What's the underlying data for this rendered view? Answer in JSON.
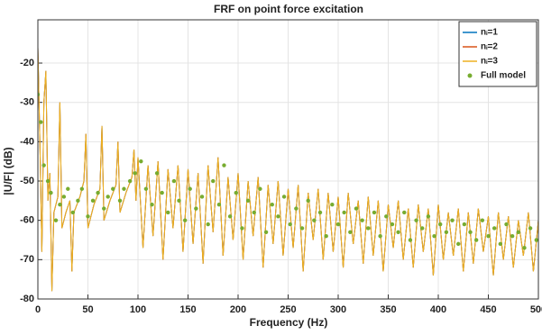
{
  "chart_data": {
    "type": "line",
    "title": "FRF on point force excitation",
    "xlabel": "Frequency (Hz)",
    "ylabel": "|U/F| (dB)",
    "xlim": [
      0,
      500
    ],
    "ylim": [
      -80,
      -9
    ],
    "xticks": [
      0,
      50,
      100,
      150,
      200,
      250,
      300,
      350,
      400,
      450,
      500
    ],
    "yticks": [
      -80,
      -70,
      -60,
      -50,
      -40,
      -30,
      -20
    ],
    "grid": true,
    "legend": "upper right",
    "x": [
      0,
      2,
      4,
      6,
      8,
      10,
      12,
      14,
      16,
      18,
      20,
      22,
      24,
      28,
      32,
      34,
      36,
      42,
      46,
      48,
      50,
      56,
      62,
      64,
      66,
      72,
      78,
      80,
      82,
      88,
      94,
      96,
      98,
      100,
      105,
      110,
      115,
      120,
      125,
      130,
      135,
      140,
      145,
      150,
      155,
      160,
      165,
      170,
      175,
      180,
      185,
      190,
      195,
      200,
      205,
      210,
      215,
      220,
      225,
      230,
      235,
      240,
      245,
      250,
      255,
      260,
      265,
      270,
      275,
      280,
      285,
      290,
      295,
      300,
      305,
      310,
      315,
      320,
      325,
      330,
      335,
      340,
      345,
      350,
      355,
      360,
      365,
      370,
      375,
      380,
      385,
      390,
      395,
      400,
      405,
      410,
      415,
      420,
      425,
      430,
      435,
      440,
      445,
      450,
      455,
      460,
      465,
      470,
      475,
      480,
      485,
      490,
      495,
      500
    ],
    "series": [
      {
        "name": "nᵢ=1",
        "color": "#0072BD",
        "style": "line",
        "values": [
          -16,
          -40,
          -68,
          -30,
          -22,
          -55,
          -48,
          -78,
          -58,
          -56,
          -54,
          -30,
          -62,
          -58,
          -55,
          -73,
          -58,
          -54,
          -50,
          -38,
          -62,
          -56,
          -52,
          -36,
          -60,
          -55,
          -51,
          -40,
          -58,
          -53,
          -49,
          -42,
          -55,
          -44,
          -67,
          -46,
          -64,
          -45,
          -70,
          -47,
          -62,
          -46,
          -68,
          -47,
          -66,
          -48,
          -71,
          -46,
          -63,
          -44,
          -69,
          -49,
          -65,
          -48,
          -70,
          -50,
          -64,
          -49,
          -72,
          -51,
          -66,
          -50,
          -69,
          -52,
          -67,
          -51,
          -73,
          -53,
          -65,
          -52,
          -70,
          -53,
          -68,
          -54,
          -72,
          -53,
          -66,
          -55,
          -71,
          -54,
          -69,
          -55,
          -73,
          -56,
          -67,
          -55,
          -70,
          -57,
          -72,
          -56,
          -68,
          -57,
          -74,
          -56,
          -70,
          -58,
          -69,
          -57,
          -73,
          -58,
          -71,
          -57,
          -68,
          -59,
          -74,
          -58,
          -70,
          -59,
          -72,
          -60,
          -69,
          -58,
          -73,
          -60
        ]
      },
      {
        "name": "nᵢ=2",
        "color": "#D95319",
        "style": "line",
        "values": [
          -16,
          -40,
          -68,
          -30,
          -22,
          -55,
          -48,
          -78,
          -58,
          -56,
          -54,
          -30,
          -62,
          -58,
          -55,
          -73,
          -58,
          -54,
          -50,
          -38,
          -62,
          -56,
          -52,
          -36,
          -60,
          -55,
          -51,
          -40,
          -58,
          -53,
          -49,
          -42,
          -55,
          -44,
          -67,
          -46,
          -64,
          -45,
          -70,
          -47,
          -62,
          -46,
          -68,
          -47,
          -66,
          -48,
          -71,
          -46,
          -63,
          -44,
          -69,
          -49,
          -65,
          -48,
          -70,
          -50,
          -64,
          -49,
          -72,
          -51,
          -66,
          -50,
          -69,
          -52,
          -67,
          -51,
          -73,
          -53,
          -65,
          -52,
          -70,
          -53,
          -68,
          -54,
          -72,
          -53,
          -66,
          -55,
          -71,
          -54,
          -69,
          -55,
          -73,
          -56,
          -67,
          -55,
          -70,
          -57,
          -72,
          -56,
          -68,
          -57,
          -74,
          -56,
          -70,
          -58,
          -69,
          -57,
          -73,
          -58,
          -71,
          -57,
          -68,
          -59,
          -74,
          -58,
          -70,
          -59,
          -72,
          -60,
          -69,
          -58,
          -73,
          -60
        ]
      },
      {
        "name": "nᵢ=3",
        "color": "#EDB120",
        "style": "line",
        "values": [
          -16,
          -40,
          -68,
          -30,
          -22,
          -55,
          -48,
          -78,
          -58,
          -56,
          -54,
          -30,
          -62,
          -58,
          -55,
          -73,
          -58,
          -54,
          -50,
          -38,
          -62,
          -56,
          -52,
          -36,
          -60,
          -55,
          -51,
          -40,
          -58,
          -53,
          -49,
          -42,
          -55,
          -44,
          -67,
          -46,
          -64,
          -45,
          -70,
          -47,
          -62,
          -46,
          -68,
          -47,
          -66,
          -48,
          -71,
          -46,
          -63,
          -44,
          -69,
          -49,
          -65,
          -48,
          -70,
          -50,
          -64,
          -49,
          -72,
          -51,
          -66,
          -50,
          -69,
          -52,
          -67,
          -51,
          -73,
          -53,
          -65,
          -52,
          -70,
          -53,
          -68,
          -54,
          -72,
          -53,
          -66,
          -55,
          -71,
          -54,
          -69,
          -55,
          -73,
          -56,
          -67,
          -55,
          -70,
          -57,
          -72,
          -56,
          -68,
          -57,
          -74,
          -56,
          -70,
          -58,
          -69,
          -57,
          -73,
          -58,
          -71,
          -57,
          -68,
          -59,
          -74,
          -58,
          -70,
          -59,
          -72,
          -60,
          -69,
          -58,
          -73,
          -60
        ]
      },
      {
        "name": "Full model",
        "color": "#77AC30",
        "style": "markers",
        "x": [
          0,
          3,
          6,
          10,
          13,
          18,
          22,
          26,
          30,
          35,
          40,
          44,
          50,
          55,
          60,
          66,
          70,
          75,
          82,
          86,
          92,
          97,
          103,
          108,
          114,
          119,
          124,
          130,
          136,
          141,
          147,
          152,
          158,
          164,
          170,
          175,
          181,
          186,
          192,
          198,
          204,
          210,
          216,
          222,
          228,
          234,
          240,
          246,
          252,
          258,
          264,
          270,
          276,
          282,
          288,
          294,
          300,
          306,
          312,
          318,
          324,
          330,
          336,
          342,
          348,
          354,
          360,
          366,
          372,
          378,
          384,
          390,
          396,
          402,
          408,
          414,
          420,
          426,
          432,
          438,
          444,
          450,
          456,
          462,
          468,
          474,
          480,
          486,
          492,
          498
        ],
        "values": [
          -28,
          -35,
          -46,
          -50,
          -53,
          -60,
          -56,
          -54,
          -52,
          -58,
          -55,
          -52,
          -59,
          -55,
          -53,
          -57,
          -54,
          -52,
          -55,
          -52,
          -50,
          -48,
          -45,
          -52,
          -56,
          -48,
          -53,
          -58,
          -50,
          -55,
          -60,
          -52,
          -57,
          -54,
          -61,
          -50,
          -56,
          -46,
          -59,
          -53,
          -62,
          -55,
          -58,
          -52,
          -63,
          -56,
          -59,
          -54,
          -61,
          -57,
          -62,
          -55,
          -60,
          -58,
          -64,
          -56,
          -61,
          -58,
          -63,
          -57,
          -60,
          -62,
          -58,
          -64,
          -59,
          -61,
          -63,
          -58,
          -65,
          -60,
          -62,
          -59,
          -64,
          -61,
          -63,
          -60,
          -66,
          -61,
          -63,
          -65,
          -60,
          -64,
          -62,
          -66,
          -61,
          -64,
          -63,
          -67,
          -62,
          -65
        ]
      }
    ]
  }
}
